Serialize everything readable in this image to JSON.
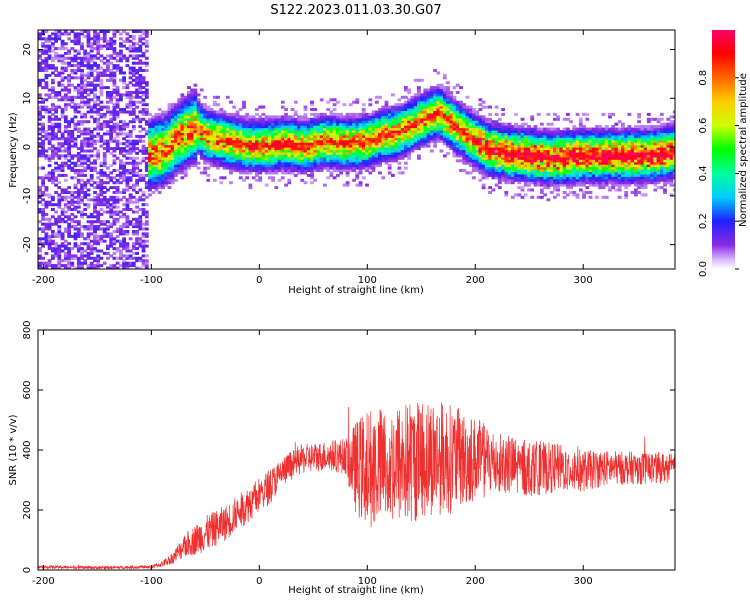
{
  "title": "S122.2023.011.03.30.G07",
  "chart_data": [
    {
      "type": "heatmap",
      "xlabel": "Height of straight line (km)",
      "ylabel": "Frequency (Hz)",
      "xlim": [
        -205,
        385
      ],
      "ylim": [
        -25,
        24
      ],
      "xticks": [
        -200,
        -100,
        0,
        100,
        200,
        300
      ],
      "yticks": [
        -20,
        -10,
        0,
        10,
        20
      ],
      "grid": false,
      "ridge": {
        "height_km": [
          -110,
          -90,
          -75,
          -60,
          -50,
          -30,
          -10,
          0,
          20,
          40,
          60,
          80,
          100,
          110,
          130,
          150,
          165,
          175,
          190,
          210,
          230,
          250,
          270,
          300,
          330,
          360,
          385
        ],
        "frequency_hz": [
          -2,
          -1,
          2,
          4,
          2,
          1,
          0,
          0,
          0.5,
          0,
          1,
          0.5,
          1,
          2,
          3,
          5.5,
          7,
          5,
          2.5,
          -0.5,
          -1.5,
          -2,
          -2.5,
          -2,
          -2,
          -2,
          -1
        ]
      },
      "colorbar": {
        "label": "Normalized spectral amplitude",
        "range": [
          0,
          1
        ],
        "ticks": [
          0.0,
          0.2,
          0.4,
          0.6,
          0.8
        ],
        "colormap": "hsv-rainbow (white-violet low to magenta-red high)"
      }
    },
    {
      "type": "line",
      "xlabel": "Height of straight line (km)",
      "ylabel": "SNR (10 * v/v)",
      "xlim": [
        -205,
        385
      ],
      "ylim": [
        0,
        800
      ],
      "xticks": [
        -200,
        -100,
        0,
        100,
        200,
        300
      ],
      "yticks": [
        0,
        200,
        400,
        600,
        800
      ],
      "color": "#ee3030",
      "grid": false,
      "series": [
        {
          "name": "",
          "x": [
            -205,
            -150,
            -100,
            -90,
            -80,
            -70,
            -60,
            -50,
            -40,
            -30,
            -20,
            -10,
            0,
            10,
            20,
            30,
            40,
            60,
            80,
            90,
            100,
            120,
            140,
            160,
            180,
            200,
            220,
            240,
            260,
            280,
            300,
            320,
            340,
            360,
            385
          ],
          "y": [
            10,
            8,
            10,
            20,
            40,
            80,
            100,
            120,
            140,
            160,
            190,
            220,
            250,
            280,
            320,
            350,
            370,
            380,
            380,
            340,
            340,
            350,
            360,
            380,
            370,
            370,
            360,
            340,
            340,
            340,
            330,
            340,
            340,
            340,
            340
          ],
          "spread": [
            5,
            5,
            5,
            10,
            20,
            40,
            50,
            60,
            60,
            60,
            60,
            60,
            60,
            60,
            50,
            50,
            50,
            50,
            60,
            160,
            200,
            200,
            210,
            200,
            180,
            140,
            110,
            100,
            90,
            80,
            70,
            60,
            55,
            55,
            50
          ]
        }
      ]
    }
  ]
}
